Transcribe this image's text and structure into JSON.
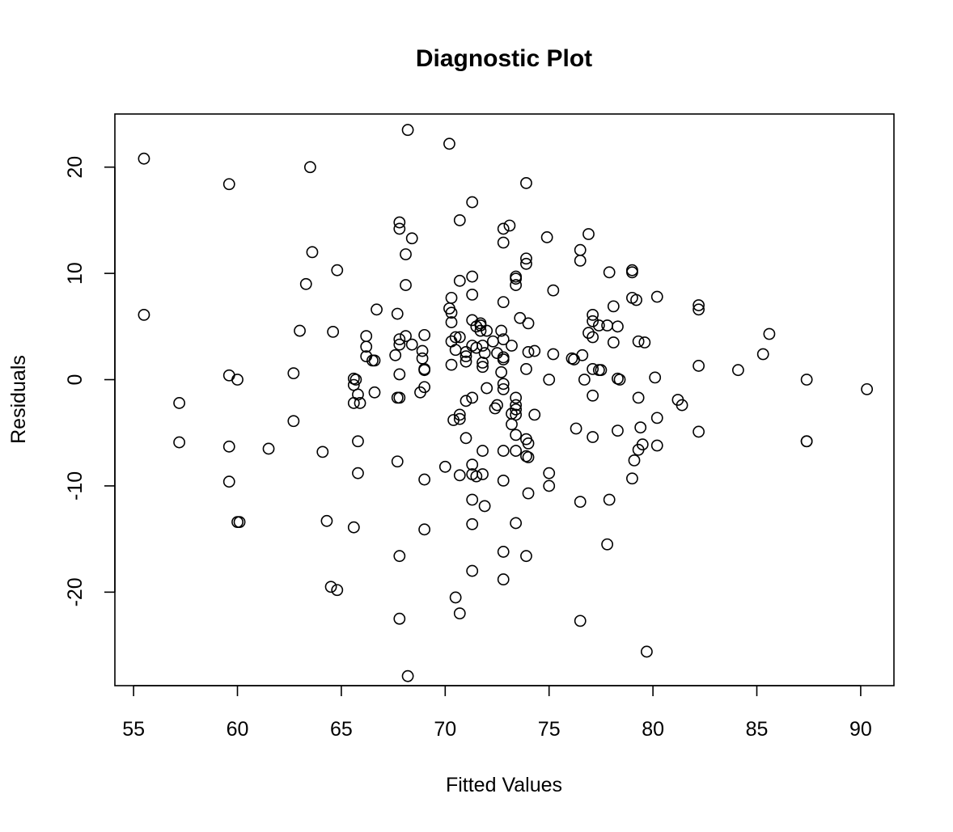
{
  "chart_data": {
    "type": "scatter",
    "title": "Diagnostic Plot",
    "xlabel": "Fitted Values",
    "ylabel": "Residuals",
    "xlim": [
      54.1,
      91.6
    ],
    "ylim": [
      -28.8,
      25.0
    ],
    "x_ticks": [
      55,
      60,
      65,
      70,
      75,
      80,
      85,
      90
    ],
    "x_tick_labels": [
      "55",
      "60",
      "65",
      "70",
      "75",
      "80",
      "85",
      "90"
    ],
    "y_ticks": [
      -20,
      -10,
      0,
      10,
      20
    ],
    "y_tick_labels": [
      "-20",
      "-10",
      "0",
      "10",
      "20"
    ],
    "grid": false,
    "legend": "none",
    "colors": {
      "marker_stroke": "#000000",
      "axis": "#000000",
      "background": "#ffffff"
    },
    "points": [
      [
        55.5,
        20.8
      ],
      [
        55.5,
        6.1
      ],
      [
        57.2,
        -2.2
      ],
      [
        57.2,
        -5.9
      ],
      [
        59.6,
        18.4
      ],
      [
        59.6,
        0.4
      ],
      [
        59.6,
        -6.3
      ],
      [
        59.6,
        -9.6
      ],
      [
        60.0,
        0.0
      ],
      [
        60.0,
        -13.4
      ],
      [
        60.1,
        -13.4
      ],
      [
        61.5,
        -6.5
      ],
      [
        62.7,
        0.6
      ],
      [
        62.7,
        -3.9
      ],
      [
        63.0,
        4.6
      ],
      [
        63.3,
        9.0
      ],
      [
        63.5,
        20.0
      ],
      [
        63.6,
        12.0
      ],
      [
        64.1,
        -6.8
      ],
      [
        64.3,
        -13.3
      ],
      [
        64.5,
        -19.5
      ],
      [
        64.6,
        4.5
      ],
      [
        64.8,
        10.3
      ],
      [
        64.8,
        -19.8
      ],
      [
        65.6,
        0.1
      ],
      [
        65.6,
        -0.5
      ],
      [
        65.6,
        -2.2
      ],
      [
        65.6,
        -13.9
      ],
      [
        65.7,
        0.0
      ],
      [
        65.8,
        -1.4
      ],
      [
        65.8,
        -5.8
      ],
      [
        65.8,
        -8.8
      ],
      [
        65.9,
        -2.2
      ],
      [
        66.2,
        4.1
      ],
      [
        66.2,
        3.1
      ],
      [
        66.2,
        2.2
      ],
      [
        66.5,
        1.8
      ],
      [
        66.6,
        1.8
      ],
      [
        66.6,
        -1.2
      ],
      [
        66.7,
        6.6
      ],
      [
        67.6,
        2.3
      ],
      [
        67.7,
        6.2
      ],
      [
        67.7,
        -1.7
      ],
      [
        67.7,
        -7.7
      ],
      [
        67.8,
        14.8
      ],
      [
        67.8,
        14.2
      ],
      [
        67.8,
        3.8
      ],
      [
        67.8,
        3.3
      ],
      [
        67.8,
        0.5
      ],
      [
        67.8,
        -1.7
      ],
      [
        67.8,
        -16.6
      ],
      [
        67.8,
        -22.5
      ],
      [
        68.1,
        11.8
      ],
      [
        68.1,
        8.9
      ],
      [
        68.1,
        4.1
      ],
      [
        68.2,
        23.5
      ],
      [
        68.2,
        -27.9
      ],
      [
        68.4,
        13.3
      ],
      [
        68.4,
        3.3
      ],
      [
        68.8,
        -1.2
      ],
      [
        68.9,
        2.7
      ],
      [
        68.9,
        2.0
      ],
      [
        69.0,
        4.2
      ],
      [
        69.0,
        1.0
      ],
      [
        69.0,
        0.9
      ],
      [
        69.0,
        -0.7
      ],
      [
        69.0,
        -9.4
      ],
      [
        69.0,
        -14.1
      ],
      [
        70.0,
        -8.2
      ],
      [
        70.2,
        22.2
      ],
      [
        70.2,
        6.7
      ],
      [
        70.3,
        7.7
      ],
      [
        70.3,
        6.3
      ],
      [
        70.3,
        5.4
      ],
      [
        70.3,
        3.6
      ],
      [
        70.3,
        1.4
      ],
      [
        70.4,
        -3.8
      ],
      [
        70.5,
        4.0
      ],
      [
        70.5,
        2.8
      ],
      [
        70.5,
        -20.5
      ],
      [
        70.7,
        15.0
      ],
      [
        70.7,
        9.3
      ],
      [
        70.7,
        4.0
      ],
      [
        70.7,
        -3.3
      ],
      [
        70.7,
        -3.7
      ],
      [
        70.7,
        -9.0
      ],
      [
        70.7,
        -22.0
      ],
      [
        71.0,
        2.6
      ],
      [
        71.0,
        2.2
      ],
      [
        71.0,
        1.7
      ],
      [
        71.0,
        -2.0
      ],
      [
        71.0,
        -5.5
      ],
      [
        71.3,
        16.7
      ],
      [
        71.3,
        9.7
      ],
      [
        71.3,
        8.0
      ],
      [
        71.3,
        5.6
      ],
      [
        71.3,
        3.2
      ],
      [
        71.3,
        -1.7
      ],
      [
        71.3,
        -8.0
      ],
      [
        71.3,
        -8.9
      ],
      [
        71.3,
        -11.3
      ],
      [
        71.3,
        -13.6
      ],
      [
        71.3,
        -18.0
      ],
      [
        71.5,
        5.0
      ],
      [
        71.5,
        3.0
      ],
      [
        71.5,
        -9.1
      ],
      [
        71.7,
        5.3
      ],
      [
        71.7,
        5.1
      ],
      [
        71.7,
        4.6
      ],
      [
        71.8,
        3.2
      ],
      [
        71.8,
        1.6
      ],
      [
        71.8,
        1.2
      ],
      [
        71.8,
        -6.7
      ],
      [
        71.8,
        -8.9
      ],
      [
        71.9,
        2.5
      ],
      [
        71.9,
        -11.9
      ],
      [
        72.0,
        4.6
      ],
      [
        72.0,
        -0.8
      ],
      [
        72.3,
        3.6
      ],
      [
        72.4,
        -2.7
      ],
      [
        72.5,
        2.5
      ],
      [
        72.5,
        -2.4
      ],
      [
        72.7,
        4.6
      ],
      [
        72.7,
        0.7
      ],
      [
        72.8,
        14.2
      ],
      [
        72.8,
        12.9
      ],
      [
        72.8,
        7.3
      ],
      [
        72.8,
        3.8
      ],
      [
        72.8,
        2.1
      ],
      [
        72.8,
        1.9
      ],
      [
        72.8,
        -0.4
      ],
      [
        72.8,
        -0.9
      ],
      [
        72.8,
        -6.7
      ],
      [
        72.8,
        -9.5
      ],
      [
        72.8,
        -16.2
      ],
      [
        72.8,
        -18.8
      ],
      [
        73.1,
        14.5
      ],
      [
        73.2,
        3.2
      ],
      [
        73.2,
        -3.2
      ],
      [
        73.2,
        -4.2
      ],
      [
        73.4,
        9.7
      ],
      [
        73.4,
        9.5
      ],
      [
        73.4,
        8.9
      ],
      [
        73.4,
        -1.7
      ],
      [
        73.4,
        -2.4
      ],
      [
        73.4,
        -2.8
      ],
      [
        73.4,
        -3.3
      ],
      [
        73.4,
        -5.2
      ],
      [
        73.4,
        -6.7
      ],
      [
        73.4,
        -13.5
      ],
      [
        73.6,
        5.8
      ],
      [
        73.9,
        18.5
      ],
      [
        73.9,
        11.4
      ],
      [
        73.9,
        10.9
      ],
      [
        73.9,
        1.0
      ],
      [
        73.9,
        -5.6
      ],
      [
        73.9,
        -7.2
      ],
      [
        73.9,
        -16.6
      ],
      [
        74.0,
        5.3
      ],
      [
        74.0,
        2.6
      ],
      [
        74.0,
        -6.0
      ],
      [
        74.0,
        -7.3
      ],
      [
        74.0,
        -10.7
      ],
      [
        74.3,
        2.7
      ],
      [
        74.3,
        -3.3
      ],
      [
        74.9,
        13.4
      ],
      [
        75.0,
        0.0
      ],
      [
        75.0,
        -8.8
      ],
      [
        75.0,
        -10.0
      ],
      [
        75.2,
        8.4
      ],
      [
        75.2,
        2.4
      ],
      [
        76.1,
        2.0
      ],
      [
        76.2,
        1.9
      ],
      [
        76.3,
        -4.6
      ],
      [
        76.5,
        12.2
      ],
      [
        76.5,
        11.2
      ],
      [
        76.5,
        -11.5
      ],
      [
        76.5,
        -22.7
      ],
      [
        76.6,
        2.3
      ],
      [
        76.7,
        0.0
      ],
      [
        76.9,
        13.7
      ],
      [
        76.9,
        4.4
      ],
      [
        77.1,
        6.1
      ],
      [
        77.1,
        5.5
      ],
      [
        77.1,
        4.0
      ],
      [
        77.1,
        1.0
      ],
      [
        77.1,
        -1.5
      ],
      [
        77.1,
        -5.4
      ],
      [
        77.4,
        5.1
      ],
      [
        77.4,
        0.9
      ],
      [
        77.5,
        0.9
      ],
      [
        77.8,
        5.1
      ],
      [
        77.8,
        -15.5
      ],
      [
        77.9,
        10.1
      ],
      [
        77.9,
        -11.3
      ],
      [
        78.1,
        6.9
      ],
      [
        78.1,
        3.5
      ],
      [
        78.3,
        5.0
      ],
      [
        78.3,
        0.1
      ],
      [
        78.3,
        -4.8
      ],
      [
        78.4,
        0.0
      ],
      [
        79.0,
        10.3
      ],
      [
        79.0,
        10.1
      ],
      [
        79.0,
        7.7
      ],
      [
        79.0,
        -9.3
      ],
      [
        79.1,
        -7.6
      ],
      [
        79.2,
        7.5
      ],
      [
        79.3,
        3.6
      ],
      [
        79.3,
        -1.7
      ],
      [
        79.3,
        -6.6
      ],
      [
        79.4,
        -4.5
      ],
      [
        79.5,
        -6.1
      ],
      [
        79.6,
        3.5
      ],
      [
        79.7,
        -25.6
      ],
      [
        80.1,
        0.2
      ],
      [
        80.2,
        7.8
      ],
      [
        80.2,
        -3.6
      ],
      [
        80.2,
        -6.2
      ],
      [
        81.2,
        -1.9
      ],
      [
        81.4,
        -2.4
      ],
      [
        82.2,
        7.0
      ],
      [
        82.2,
        6.6
      ],
      [
        82.2,
        1.3
      ],
      [
        82.2,
        -4.9
      ],
      [
        84.1,
        0.9
      ],
      [
        85.3,
        2.4
      ],
      [
        85.6,
        4.3
      ],
      [
        87.4,
        0.0
      ],
      [
        87.4,
        -5.8
      ],
      [
        87.4,
        -5.8
      ],
      [
        90.3,
        -0.9
      ]
    ]
  }
}
